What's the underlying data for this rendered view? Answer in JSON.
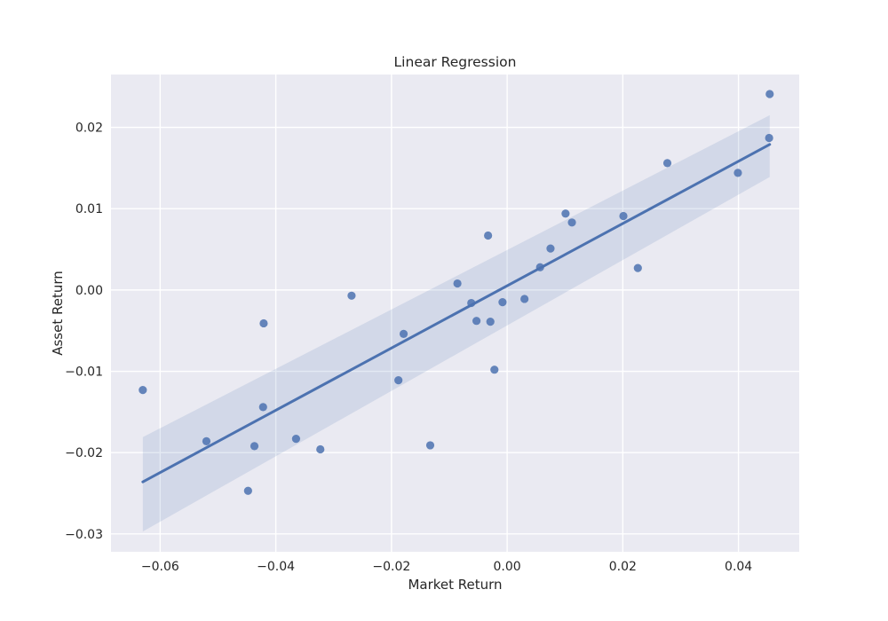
{
  "chart_data": {
    "type": "scatter",
    "title": "Linear Regression",
    "xlabel": "Market Return",
    "ylabel": "Asset Return",
    "xlim": [
      -0.0685,
      0.0505
    ],
    "ylim": [
      -0.0322,
      0.0265
    ],
    "grid": true,
    "xticks": [
      -0.06,
      -0.04,
      -0.02,
      0.0,
      0.02,
      0.04
    ],
    "xtick_labels": [
      "−0.06",
      "−0.04",
      "−0.02",
      "0.00",
      "0.02",
      "0.04"
    ],
    "yticks": [
      -0.03,
      -0.02,
      -0.01,
      0.0,
      0.01,
      0.02
    ],
    "ytick_labels": [
      "−0.03",
      "−0.02",
      "−0.01",
      "0.00",
      "0.01",
      "0.02"
    ],
    "points": {
      "x": [
        -0.063,
        -0.052,
        -0.0448,
        -0.0437,
        -0.0422,
        -0.0421,
        -0.0365,
        -0.0323,
        -0.0269,
        -0.0188,
        -0.0179,
        -0.0133,
        -0.0086,
        -0.0062,
        -0.0053,
        -0.0033,
        -0.0029,
        -0.0022,
        -0.0008,
        0.003,
        0.0057,
        0.0075,
        0.0101,
        0.0112,
        0.0201,
        0.0226,
        0.0277,
        0.0399,
        0.0453,
        0.0454
      ],
      "y": [
        -0.0123,
        -0.0186,
        -0.0247,
        -0.0192,
        -0.0144,
        -0.0041,
        -0.0183,
        -0.0196,
        -0.0007,
        -0.0111,
        -0.0054,
        -0.0191,
        0.0008,
        -0.0016,
        -0.0038,
        0.0067,
        -0.0039,
        -0.0098,
        -0.0015,
        -0.0011,
        0.0028,
        0.0051,
        0.0094,
        0.0083,
        0.0091,
        0.0027,
        0.0156,
        0.0144,
        0.0187,
        0.0241
      ]
    },
    "regression": {
      "x_range": [
        -0.063,
        0.0454
      ],
      "line": [
        -0.0236,
        0.0179
      ],
      "ci_lower": [
        -0.0297,
        0.0139
      ],
      "ci_upper": [
        -0.0181,
        0.0215
      ]
    },
    "colors": {
      "background": "#eaeaf2",
      "grid": "#ffffff",
      "points": "#4c72b0",
      "line": "#4c72b0",
      "band": "#4c72b0"
    }
  }
}
